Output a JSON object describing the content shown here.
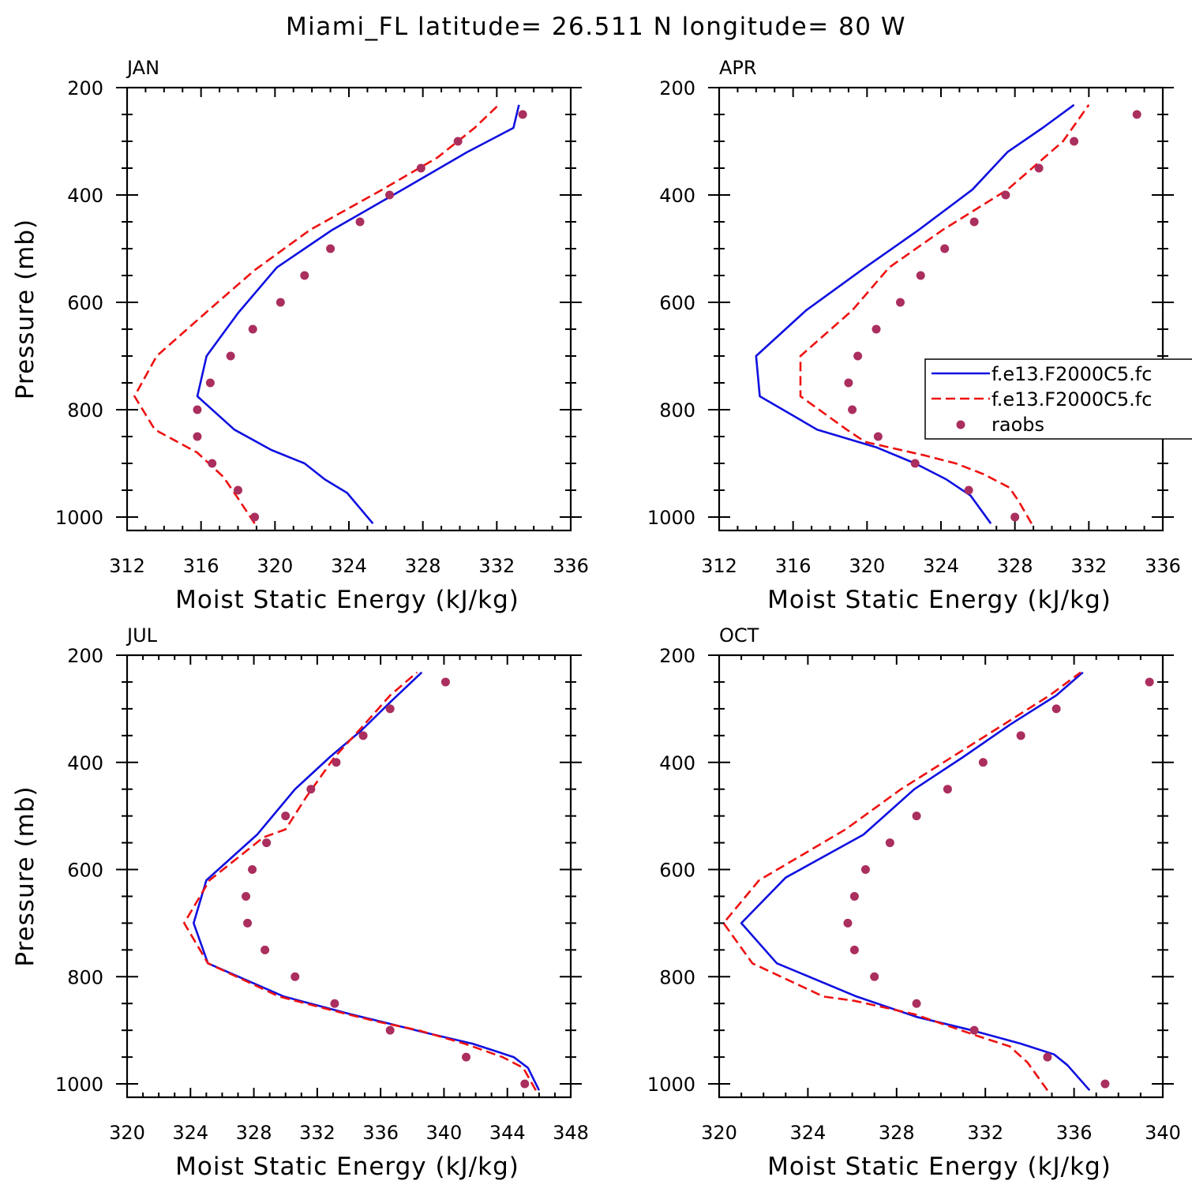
{
  "figure_title": "Miami_FL  latitude= 26.511 N longitude= 80 W",
  "colors": {
    "model_a": "#1010e0",
    "model_b": "#ee1111",
    "raobs": "#aa2e5e",
    "frame": "#000000"
  },
  "legend": {
    "position": "upper-right of APR panel",
    "entries": [
      {
        "label": "f.e13.F2000C5.fc",
        "style": "solid-line",
        "color": "#1010e0"
      },
      {
        "label": "f.e13.F2000C5.fc",
        "style": "dashed-line",
        "color": "#ee1111"
      },
      {
        "label": "raobs",
        "style": "marker",
        "color": "#aa2e5e"
      }
    ]
  },
  "chart_data": [
    {
      "type": "line",
      "title": "JAN",
      "xlabel": "Moist Static Energy (kJ/kg)",
      "ylabel": "Pressure (mb)",
      "xlim": [
        312,
        336
      ],
      "ylim": [
        1025,
        200
      ],
      "xticks": [
        312,
        316,
        320,
        324,
        328,
        332,
        336
      ],
      "yticks": [
        200,
        400,
        600,
        800,
        1000
      ],
      "series": [
        {
          "name": "f.e13.F2000C5.fc",
          "style": "solid",
          "x": [
            325.3,
            323.9,
            322.7,
            321.6,
            319.8,
            317.8,
            315.8,
            316.3,
            318.0,
            320.1,
            323.1,
            326.9,
            330.4,
            332.9,
            333.2
          ],
          "y": [
            1012,
            955,
            930,
            900,
            875,
            837,
            775,
            700,
            620,
            535,
            465,
            390,
            320,
            275,
            232
          ]
        },
        {
          "name": "f.e13.F2000C5.fc",
          "style": "dashed",
          "x": [
            318.9,
            317.9,
            317.2,
            315.8,
            313.5,
            312.4,
            313.6,
            316.4,
            318.9,
            321.9,
            325.8,
            328.8,
            330.8,
            332.1
          ],
          "y": [
            1012,
            960,
            925,
            880,
            837,
            775,
            700,
            615,
            540,
            465,
            390,
            330,
            275,
            232
          ]
        },
        {
          "name": "raobs",
          "style": "marker",
          "x": [
            318.9,
            318.0,
            316.6,
            315.8,
            315.8,
            316.5,
            317.6,
            318.8,
            320.3,
            321.6,
            323.0,
            324.6,
            326.2,
            327.9,
            329.9,
            333.4
          ],
          "y": [
            1000,
            950,
            900,
            850,
            800,
            750,
            700,
            650,
            600,
            550,
            500,
            450,
            400,
            350,
            300,
            250
          ]
        }
      ]
    },
    {
      "type": "line",
      "title": "APR",
      "xlabel": "Moist Static Energy (kJ/kg)",
      "ylabel": "",
      "xlim": [
        312,
        336
      ],
      "ylim": [
        1025,
        200
      ],
      "xticks": [
        312,
        316,
        320,
        324,
        328,
        332,
        336
      ],
      "yticks": [
        200,
        400,
        600,
        800,
        1000
      ],
      "series": [
        {
          "name": "f.e13.F2000C5.fc",
          "style": "solid",
          "x": [
            326.7,
            325.6,
            324.3,
            322.6,
            320.5,
            317.3,
            314.2,
            314.0,
            316.7,
            319.9,
            322.8,
            325.7,
            327.6,
            329.5,
            331.2
          ],
          "y": [
            1012,
            960,
            930,
            900,
            870,
            837,
            775,
            700,
            615,
            535,
            465,
            390,
            320,
            275,
            232
          ]
        },
        {
          "name": "f.e13.F2000C5.fc",
          "style": "dashed",
          "x": [
            328.9,
            328.2,
            327.7,
            326.3,
            324.8,
            323.1,
            319.9,
            318.9,
            316.4,
            316.4,
            319.2,
            321.2,
            324.1,
            327.6,
            330.6,
            332.0
          ],
          "y": [
            1012,
            970,
            945,
            920,
            900,
            885,
            860,
            837,
            775,
            700,
            615,
            535,
            465,
            390,
            300,
            232
          ]
        },
        {
          "name": "raobs",
          "style": "marker",
          "x": [
            328.0,
            325.5,
            322.6,
            320.6,
            319.2,
            319.0,
            319.5,
            320.5,
            321.8,
            322.9,
            324.2,
            325.8,
            327.5,
            329.3,
            331.2,
            334.6
          ],
          "y": [
            1000,
            950,
            900,
            850,
            800,
            750,
            700,
            650,
            600,
            550,
            500,
            450,
            400,
            350,
            300,
            250
          ]
        }
      ]
    },
    {
      "type": "line",
      "title": "JUL",
      "xlabel": "Moist Static Energy (kJ/kg)",
      "ylabel": "Pressure (mb)",
      "xlim": [
        320,
        348
      ],
      "ylim": [
        1025,
        200
      ],
      "xticks": [
        320,
        324,
        328,
        332,
        336,
        340,
        344,
        348
      ],
      "yticks": [
        200,
        400,
        600,
        800,
        1000
      ],
      "series": [
        {
          "name": "f.e13.F2000C5.fc",
          "style": "solid",
          "x": [
            346.0,
            345.3,
            344.4,
            341.8,
            338.9,
            336.2,
            334.1,
            329.9,
            325.1,
            324.2,
            325.0,
            328.2,
            330.6,
            332.8,
            334.8,
            336.7,
            338.6
          ],
          "y": [
            1012,
            970,
            950,
            925,
            905,
            885,
            870,
            837,
            775,
            700,
            620,
            535,
            450,
            390,
            340,
            285,
            232
          ]
        },
        {
          "name": "f.e13.F2000C5.fc",
          "style": "dashed",
          "x": [
            345.8,
            345.0,
            343.7,
            341.3,
            338.4,
            336.0,
            333.9,
            329.6,
            325.1,
            323.6,
            325.2,
            328.6,
            330.0,
            331.3,
            333.1,
            334.8,
            336.6,
            338.3
          ],
          "y": [
            1012,
            970,
            950,
            925,
            900,
            885,
            870,
            837,
            775,
            700,
            620,
            540,
            525,
            465,
            390,
            335,
            275,
            232
          ]
        },
        {
          "name": "raobs",
          "style": "marker",
          "x": [
            345.1,
            341.4,
            336.6,
            333.1,
            330.6,
            328.7,
            327.6,
            327.5,
            327.9,
            328.8,
            330.0,
            331.6,
            333.2,
            334.9,
            336.6,
            340.1
          ],
          "y": [
            1000,
            950,
            900,
            850,
            800,
            750,
            700,
            650,
            600,
            550,
            500,
            450,
            400,
            350,
            300,
            250
          ]
        }
      ]
    },
    {
      "type": "line",
      "title": "OCT",
      "xlabel": "Moist Static Energy (kJ/kg)",
      "ylabel": "",
      "xlim": [
        320,
        340
      ],
      "ylim": [
        1025,
        200
      ],
      "xticks": [
        320,
        324,
        328,
        332,
        336,
        340
      ],
      "yticks": [
        200,
        400,
        600,
        800,
        1000
      ],
      "series": [
        {
          "name": "f.e13.F2000C5.fc",
          "style": "solid",
          "x": [
            336.7,
            335.7,
            335.1,
            333.6,
            331.4,
            328.9,
            326.2,
            322.6,
            321.0,
            323.0,
            326.5,
            328.8,
            331.0,
            333.1,
            335.2,
            336.4
          ],
          "y": [
            1012,
            965,
            945,
            925,
            900,
            875,
            837,
            775,
            700,
            615,
            535,
            450,
            390,
            330,
            275,
            232
          ]
        },
        {
          "name": "f.e13.F2000C5.fc",
          "style": "dashed",
          "x": [
            334.8,
            333.9,
            333.1,
            331.6,
            328.8,
            326.1,
            324.7,
            321.5,
            320.2,
            321.8,
            325.7,
            328.2,
            330.5,
            332.8,
            334.9,
            336.3
          ],
          "y": [
            1012,
            960,
            930,
            910,
            870,
            845,
            837,
            775,
            700,
            620,
            525,
            450,
            390,
            330,
            275,
            232
          ]
        },
        {
          "name": "raobs",
          "style": "marker",
          "x": [
            337.4,
            334.8,
            331.5,
            328.9,
            327.0,
            326.1,
            325.8,
            326.1,
            326.6,
            327.7,
            328.9,
            330.3,
            331.9,
            333.6,
            335.2,
            339.4
          ],
          "y": [
            1000,
            950,
            900,
            850,
            800,
            750,
            700,
            650,
            600,
            550,
            500,
            450,
            400,
            350,
            300,
            250
          ]
        }
      ]
    }
  ]
}
